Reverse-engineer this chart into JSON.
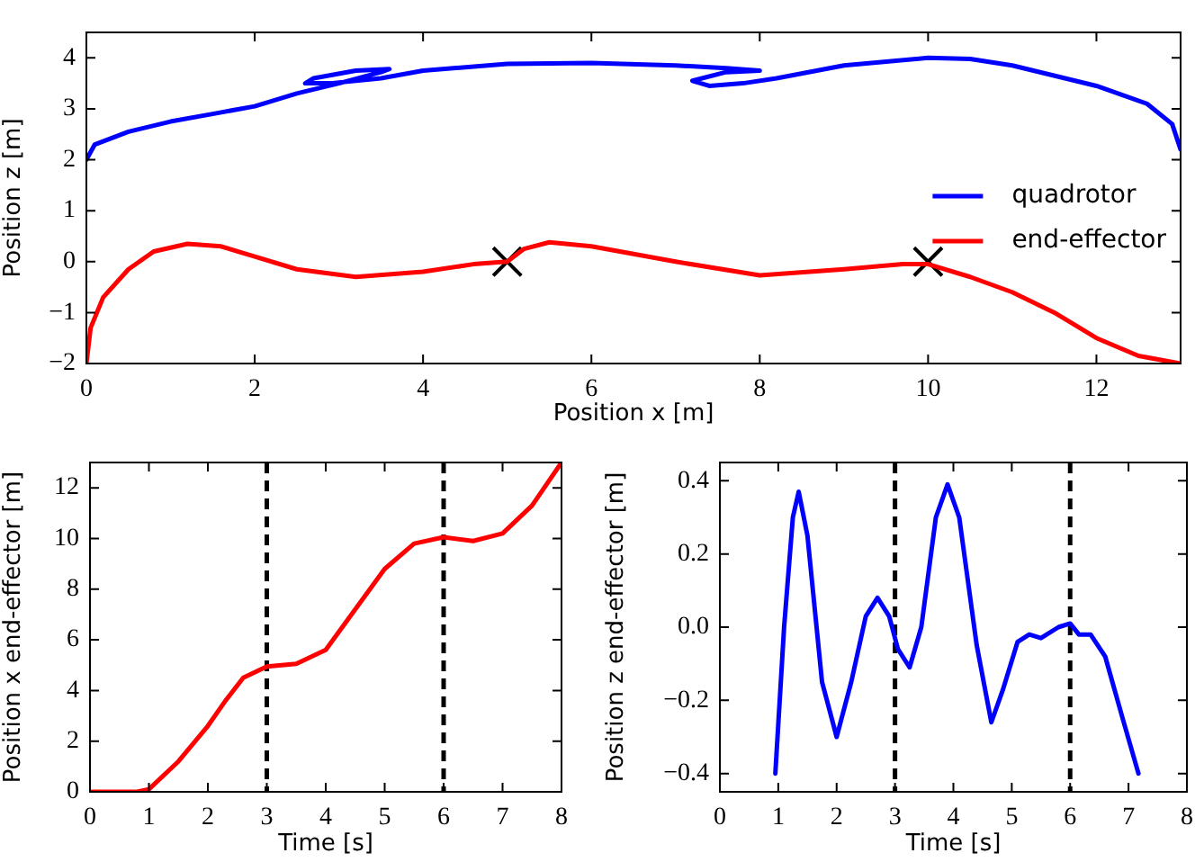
{
  "chart_data": [
    {
      "type": "line",
      "xlabel": "Position x [m]",
      "ylabel": "Position z [m]",
      "xlim": [
        0,
        13
      ],
      "xticks": [
        0,
        2,
        4,
        6,
        8,
        10,
        12
      ],
      "ylim": [
        -2,
        4.5
      ],
      "yticks": [
        {
          "value": -2,
          "label": "−2"
        },
        {
          "value": -1,
          "label": "−1"
        },
        0,
        1,
        2,
        3,
        4
      ],
      "legend": "right",
      "line_style": "solid",
      "series": [
        {
          "name": "quadrotor",
          "color": "#0000ff",
          "x": [
            0,
            0.1,
            0.5,
            1,
            1.5,
            2,
            2.5,
            3,
            3.5,
            3.6,
            3.2,
            2.7,
            2.6,
            2.9,
            3.5,
            4,
            5,
            6,
            7,
            7.6,
            8,
            7.6,
            7.2,
            7.4,
            7.8,
            8.2,
            9,
            10,
            10.5,
            11,
            12,
            12.6,
            12.9,
            13
          ],
          "values": [
            2,
            2.3,
            2.55,
            2.75,
            2.9,
            3.05,
            3.3,
            3.5,
            3.72,
            3.78,
            3.75,
            3.6,
            3.5,
            3.5,
            3.6,
            3.75,
            3.88,
            3.9,
            3.85,
            3.8,
            3.75,
            3.72,
            3.55,
            3.45,
            3.5,
            3.6,
            3.85,
            4,
            3.98,
            3.85,
            3.45,
            3.1,
            2.7,
            2.2
          ]
        },
        {
          "name": "end-effector",
          "color": "#ff0000",
          "x": [
            0,
            0.05,
            0.2,
            0.5,
            0.8,
            1.2,
            1.6,
            2,
            2.5,
            3.2,
            4,
            4.6,
            5,
            5.2,
            5.5,
            6,
            7,
            8,
            9,
            9.7,
            10,
            10.5,
            11,
            11.5,
            12,
            12.5,
            13
          ],
          "values": [
            -2,
            -1.3,
            -0.7,
            -0.15,
            0.2,
            0.35,
            0.3,
            0.1,
            -0.15,
            -0.3,
            -0.2,
            -0.05,
            0,
            0.25,
            0.38,
            0.3,
            0,
            -0.27,
            -0.15,
            -0.05,
            -0.05,
            -0.3,
            -0.6,
            -1,
            -1.5,
            -1.85,
            -2
          ]
        },
        {
          "type": "scatter",
          "marker": "cross",
          "color": "#000000",
          "x": [
            5,
            10
          ],
          "values": [
            0,
            0
          ]
        }
      ]
    },
    {
      "type": "line",
      "xlabel": "Time [s]",
      "ylabel": "Position x end-effector [m]",
      "xlim": [
        0,
        8
      ],
      "xticks": [
        0,
        1,
        2,
        3,
        4,
        5,
        6,
        7,
        8
      ],
      "ylim": [
        0,
        13
      ],
      "yticks": [
        0,
        2,
        4,
        6,
        8,
        10,
        12
      ],
      "line_style": "solid",
      "ref_lines": [
        {
          "axis": "x",
          "value": 3,
          "color": "#000000",
          "line_style": "dashed"
        },
        {
          "axis": "x",
          "value": 6,
          "color": "#000000",
          "line_style": "dashed"
        }
      ],
      "series": [
        {
          "color": "#ff0000",
          "x": [
            0,
            0.8,
            1,
            1.5,
            2,
            2.3,
            2.6,
            3,
            3.5,
            4,
            4.5,
            5,
            5.5,
            6,
            6.5,
            7,
            7.5,
            8
          ],
          "values": [
            0,
            0,
            0.1,
            1.2,
            2.6,
            3.6,
            4.5,
            4.95,
            5.05,
            5.6,
            7.2,
            8.8,
            9.8,
            10.05,
            9.9,
            10.2,
            11.3,
            13
          ]
        }
      ]
    },
    {
      "type": "line",
      "xlabel": "Time [s]",
      "ylabel": "Position z end-effector [m]",
      "xlim": [
        0,
        8
      ],
      "xticks": [
        0,
        1,
        2,
        3,
        4,
        5,
        6,
        7,
        8
      ],
      "ylim": [
        -0.45,
        0.45
      ],
      "yticks": [
        {
          "value": -0.4,
          "label": "−0.4"
        },
        {
          "value": -0.2,
          "label": "−0.2"
        },
        {
          "value": 0,
          "label": "0.0"
        },
        0.2,
        0.4
      ],
      "line_style": "solid",
      "ref_lines": [
        {
          "axis": "x",
          "value": 3,
          "color": "#000000",
          "line_style": "dashed"
        },
        {
          "axis": "x",
          "value": 6,
          "color": "#000000",
          "line_style": "dashed"
        }
      ],
      "series": [
        {
          "color": "#0000ff",
          "x": [
            0.95,
            1.1,
            1.25,
            1.35,
            1.5,
            1.75,
            2,
            2.25,
            2.5,
            2.7,
            2.9,
            3.05,
            3.25,
            3.45,
            3.7,
            3.9,
            4.1,
            4.4,
            4.65,
            4.85,
            5.1,
            5.3,
            5.5,
            5.8,
            6,
            6.15,
            6.35,
            6.6,
            6.9,
            7.17
          ],
          "values": [
            -0.4,
            0,
            0.3,
            0.37,
            0.25,
            -0.15,
            -0.3,
            -0.15,
            0.03,
            0.08,
            0.03,
            -0.06,
            -0.11,
            0,
            0.3,
            0.39,
            0.3,
            -0.05,
            -0.26,
            -0.17,
            -0.04,
            -0.02,
            -0.03,
            0,
            0.01,
            -0.02,
            -0.02,
            -0.08,
            -0.25,
            -0.4
          ]
        }
      ]
    }
  ]
}
